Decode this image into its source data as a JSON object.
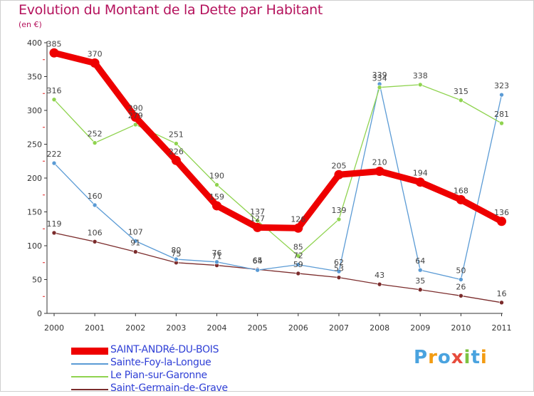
{
  "header": {
    "title": "Evolution du Montant de la Dette par Habitant",
    "unit": "(en €)"
  },
  "logo": {
    "text": "Proxiti",
    "letters": [
      "P",
      "r",
      "o",
      "x",
      "i",
      "t",
      "i"
    ],
    "colors": [
      "#4aa3df",
      "#f39c12",
      "#4aa3df",
      "#e74c3c",
      "#7dc242",
      "#4aa3df",
      "#f39c12"
    ]
  },
  "chart_data": {
    "type": "line",
    "title": "Evolution du Montant de la Dette par Habitant",
    "subtitle": "(en €)",
    "xlabel": "",
    "ylabel": "",
    "ylim": [
      0,
      400
    ],
    "yticks": [
      0,
      50,
      100,
      150,
      200,
      250,
      300,
      350,
      400
    ],
    "categories": [
      "2000",
      "2001",
      "2002",
      "2003",
      "2004",
      "2005",
      "2006",
      "2007",
      "2008",
      "2009",
      "2010",
      "2011"
    ],
    "grid": false,
    "legend_position": "bottom-left",
    "series": [
      {
        "name": "SAINT-ANDRé-DU-BOIS",
        "color": "#ee0000",
        "values": [
          385,
          370,
          290,
          226,
          159,
          127,
          126,
          205,
          210,
          194,
          168,
          136
        ],
        "labels": [
          "385",
          "370",
          "290",
          "226",
          "159",
          "127",
          "126",
          "205",
          "210",
          "194",
          "168",
          "136"
        ]
      },
      {
        "name": "Sainte-Foy-la-Longue",
        "color": "#5b9bd5",
        "values": [
          222,
          160,
          107,
          80,
          76,
          64,
          72,
          62,
          339,
          64,
          50,
          323
        ],
        "labels": [
          "222",
          "160",
          "107",
          "80",
          "76",
          "64",
          "72",
          "62",
          "339",
          "64",
          "50",
          "323"
        ]
      },
      {
        "name": "Le Pian-sur-Garonne",
        "color": "#8fd34f",
        "values": [
          316,
          252,
          279,
          251,
          190,
          137,
          85,
          139,
          334,
          338,
          315,
          281
        ],
        "labels": [
          "316",
          "252",
          "279",
          "251",
          "190",
          "137",
          "85",
          "139",
          "334",
          "338",
          "315",
          "281"
        ]
      },
      {
        "name": "Saint-Germain-de-Grave",
        "color": "#7b2c2c",
        "values": [
          119,
          106,
          91,
          75,
          71,
          65,
          59,
          53,
          43,
          35,
          26,
          16
        ],
        "labels": [
          "119",
          "106",
          "91",
          "75",
          "71",
          "65",
          "59",
          "53",
          "43",
          "35",
          "26",
          "16"
        ]
      }
    ]
  }
}
